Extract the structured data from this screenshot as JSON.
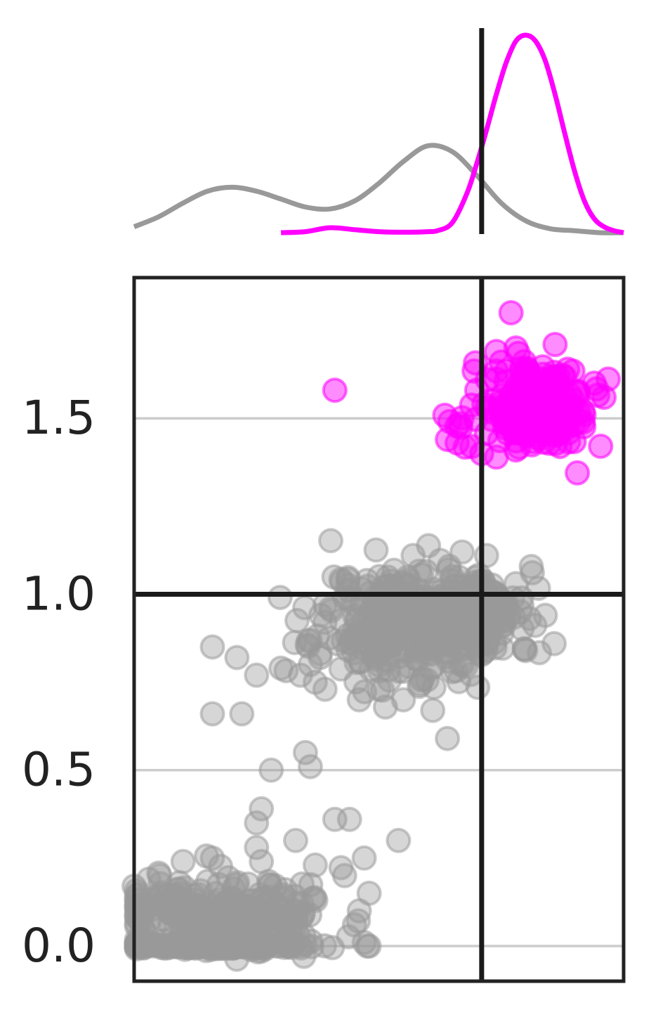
{
  "chart_data": [
    {
      "panel": "marginal-density",
      "type": "line",
      "x_range": [
        0,
        1
      ],
      "vline_x": 0.71,
      "series": [
        {
          "color": "#999999",
          "x": [
            0.0,
            0.05,
            0.1,
            0.15,
            0.2,
            0.25,
            0.3,
            0.35,
            0.4,
            0.45,
            0.5,
            0.55,
            0.6,
            0.65,
            0.7,
            0.75,
            0.8,
            0.85,
            0.9,
            0.95,
            1.0
          ],
          "y": [
            0.03,
            0.08,
            0.15,
            0.21,
            0.23,
            0.21,
            0.17,
            0.13,
            0.12,
            0.16,
            0.25,
            0.36,
            0.44,
            0.41,
            0.29,
            0.15,
            0.06,
            0.02,
            0.01,
            0.0,
            0.0
          ]
        },
        {
          "color": "#ff00ff",
          "x": [
            0.3,
            0.35,
            0.4,
            0.45,
            0.5,
            0.55,
            0.6,
            0.62,
            0.65,
            0.68,
            0.7,
            0.72,
            0.74,
            0.76,
            0.78,
            0.8,
            0.82,
            0.84,
            0.86,
            0.88,
            0.9,
            0.92,
            0.94,
            0.96,
            0.98,
            1.0
          ],
          "y": [
            0.0,
            0.005,
            0.025,
            0.015,
            0.005,
            0.002,
            0.005,
            0.01,
            0.05,
            0.2,
            0.35,
            0.52,
            0.7,
            0.86,
            0.97,
            1.0,
            0.97,
            0.87,
            0.7,
            0.5,
            0.31,
            0.16,
            0.07,
            0.03,
            0.01,
            0.0
          ]
        }
      ]
    },
    {
      "panel": "scatter",
      "type": "scatter",
      "x_range": [
        0,
        1
      ],
      "ylim": [
        -0.1,
        1.9
      ],
      "yticks": [
        "0.0",
        "0.5",
        "1.0",
        "1.5"
      ],
      "ytick_values": [
        0.0,
        0.5,
        1.0,
        1.5
      ],
      "grid": true,
      "vline_x": 0.71,
      "hline_y": 1.0,
      "series": [
        {
          "color": "#999999",
          "points": [
            [
              0.16,
              0.66
            ],
            [
              0.22,
              0.66
            ],
            [
              0.35,
              0.55
            ],
            [
              0.64,
              0.59
            ],
            [
              0.61,
              0.67
            ],
            [
              0.36,
              0.51
            ],
            [
              0.28,
              0.5
            ],
            [
              0.26,
              0.39
            ],
            [
              0.25,
              0.35
            ],
            [
              0.41,
              0.36
            ],
            [
              0.44,
              0.36
            ],
            [
              0.33,
              0.3
            ],
            [
              0.25,
              0.28
            ],
            [
              0.54,
              0.3
            ],
            [
              0.47,
              0.25
            ],
            [
              0.84,
              0.94
            ],
            [
              0.78,
              1.03
            ],
            [
              0.72,
              1.11
            ],
            [
              0.67,
              1.12
            ],
            [
              0.57,
              1.11
            ],
            [
              0.43,
              0.99
            ],
            [
              0.39,
              0.97
            ],
            [
              0.39,
              0.92
            ],
            [
              0.38,
              0.82
            ],
            [
              0.36,
              0.8
            ],
            [
              0.34,
              0.77
            ],
            [
              0.37,
              0.75
            ],
            [
              0.39,
              0.73
            ],
            [
              0.46,
              0.7
            ],
            [
              0.5,
              0.73
            ],
            [
              0.55,
              0.7
            ],
            [
              0.59,
              0.76
            ],
            [
              0.65,
              0.78
            ],
            [
              0.3,
              0.79
            ],
            [
              0.25,
              0.77
            ],
            [
              0.21,
              0.82
            ],
            [
              0.16,
              0.85
            ],
            [
              0.65,
              1.05
            ],
            [
              0.0,
              0.17
            ],
            [
              0.03,
              0.19
            ],
            [
              0.1,
              0.24
            ],
            [
              0.16,
              0.25
            ],
            [
              0.26,
              0.24
            ],
            [
              0.37,
              0.23
            ],
            [
              0.43,
              0.2
            ],
            [
              0.48,
              0.15
            ],
            [
              0.46,
              0.1
            ],
            [
              0.45,
              0.06
            ],
            [
              0.47,
              0.01
            ],
            [
              0.48,
              0.0
            ]
          ],
          "clusters": [
            {
              "cx": 0.58,
              "cy": 0.92,
              "sx": 0.1,
              "sy": 0.08,
              "n": 380,
              "seed": 11
            },
            {
              "cx": 0.72,
              "cy": 0.97,
              "sx": 0.05,
              "sy": 0.04,
              "n": 70,
              "seed": 12
            },
            {
              "cx": 0.18,
              "cy": 0.09,
              "sx": 0.11,
              "sy": 0.05,
              "n": 260,
              "seed": 13
            },
            {
              "cx": 0.16,
              "cy": 0.0,
              "sx": 0.12,
              "sy": 0.004,
              "n": 130,
              "seed": 14
            }
          ]
        },
        {
          "color": "#ff00ff",
          "points": [
            [
              0.41,
              1.58
            ],
            [
              0.64,
              1.44
            ],
            [
              0.66,
              1.43
            ],
            [
              0.69,
              1.42
            ],
            [
              0.71,
              1.4
            ],
            [
              0.74,
              1.39
            ],
            [
              0.78,
              1.41
            ],
            [
              0.87,
              1.42
            ],
            [
              0.88,
              1.47
            ],
            [
              0.96,
              1.56
            ],
            [
              0.94,
              1.6
            ],
            [
              0.78,
              1.7
            ],
            [
              0.77,
              1.8
            ],
            [
              0.86,
              1.71
            ],
            [
              0.74,
              1.69
            ],
            [
              0.75,
              1.66
            ],
            [
              0.7,
              1.58
            ]
          ],
          "clusters": [
            {
              "cx": 0.82,
              "cy": 1.53,
              "sx": 0.06,
              "sy": 0.06,
              "n": 220,
              "seed": 21
            }
          ]
        }
      ]
    }
  ]
}
